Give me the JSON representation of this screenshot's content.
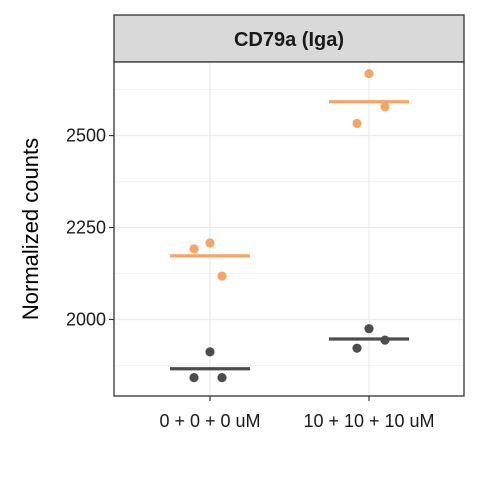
{
  "chart_data": {
    "type": "scatter",
    "title": "CD79a (Iga)",
    "xlabel": "",
    "ylabel": "Normalized counts",
    "categories": [
      "0 + 0 + 0 uM",
      "10 + 10 + 10 uM"
    ],
    "ylim": [
      1792,
      2700
    ],
    "yticks": [
      2000,
      2250,
      2500
    ],
    "grid": true,
    "legend": "none",
    "series": [
      {
        "color": "#4d4d4d",
        "points": [
          {
            "category": "0 + 0 + 0 uM",
            "y": 1912
          },
          {
            "category": "0 + 0 + 0 uM",
            "y": 1842
          },
          {
            "category": "0 + 0 + 0 uM",
            "y": 1842
          },
          {
            "category": "10 + 10 + 10 uM",
            "y": 1975
          },
          {
            "category": "10 + 10 + 10 uM",
            "y": 1944
          },
          {
            "category": "10 + 10 + 10 uM",
            "y": 1922
          }
        ],
        "means": [
          1866,
          1947
        ]
      },
      {
        "color": "#f5a565",
        "points": [
          {
            "category": "0 + 0 + 0 uM",
            "y": 2208
          },
          {
            "category": "0 + 0 + 0 uM",
            "y": 2192
          },
          {
            "category": "0 + 0 + 0 uM",
            "y": 2118
          },
          {
            "category": "10 + 10 + 10 uM",
            "y": 2668
          },
          {
            "category": "10 + 10 + 10 uM",
            "y": 2578
          },
          {
            "category": "10 + 10 + 10 uM",
            "y": 2533
          }
        ],
        "means": [
          2173,
          2592
        ]
      }
    ]
  }
}
